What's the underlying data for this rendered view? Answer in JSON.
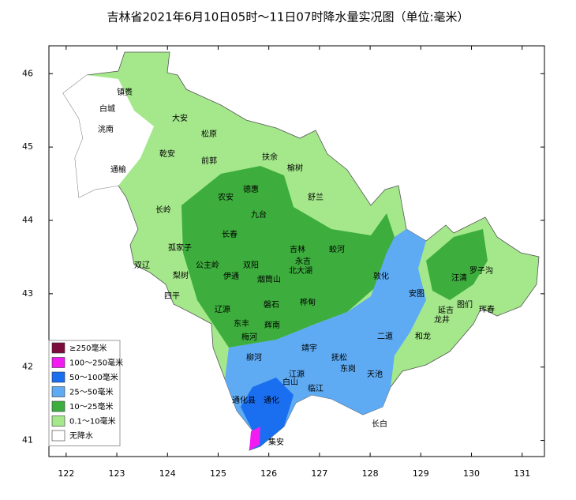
{
  "map": {
    "title": "吉林省2021年6月10日05时～11日07时降水量实况图（单位:毫米）",
    "xlim": [
      121.66,
      131.44
    ],
    "ylim": [
      40.78,
      46.38
    ],
    "xticks": [
      122,
      123,
      124,
      125,
      126,
      127,
      128,
      129,
      130,
      131
    ],
    "yticks": [
      41,
      42,
      43,
      44,
      45,
      46
    ],
    "legend": [
      {
        "label": "≥250毫米",
        "color": "#7b0c3c"
      },
      {
        "label": "100～250毫米",
        "color": "#f21bf2"
      },
      {
        "label": "50～100毫米",
        "color": "#1a6ff0"
      },
      {
        "label": "25～50毫米",
        "color": "#5eaaf3"
      },
      {
        "label": "10～25毫米",
        "color": "#3dae3d"
      },
      {
        "label": "0.1～10毫米",
        "color": "#a5e88c"
      },
      {
        "label": "无降水",
        "color": "#ffffff"
      }
    ],
    "places": [
      "镇赉",
      "白城",
      "洮南",
      "大安",
      "松原",
      "乾安",
      "通榆",
      "前郭",
      "扶余",
      "榆树",
      "农安",
      "德惠",
      "舒兰",
      "长岭",
      "九台",
      "长春",
      "吉林",
      "蛟河",
      "孤家子",
      "双辽",
      "公主岭",
      "双阳",
      "永吉",
      "北大湖",
      "梨树",
      "伊通",
      "烟筒山",
      "敦化",
      "汪清",
      "罗子沟",
      "四平",
      "安图",
      "辽源",
      "磐石",
      "桦甸",
      "延吉",
      "图们",
      "珲春",
      "龙井",
      "东丰",
      "辉南",
      "梅河",
      "二道",
      "和龙",
      "靖宇",
      "柳河",
      "抚松",
      "东岗",
      "江源",
      "天池",
      "白山",
      "临江",
      "通化县",
      "通化",
      "长白",
      "集安"
    ]
  }
}
